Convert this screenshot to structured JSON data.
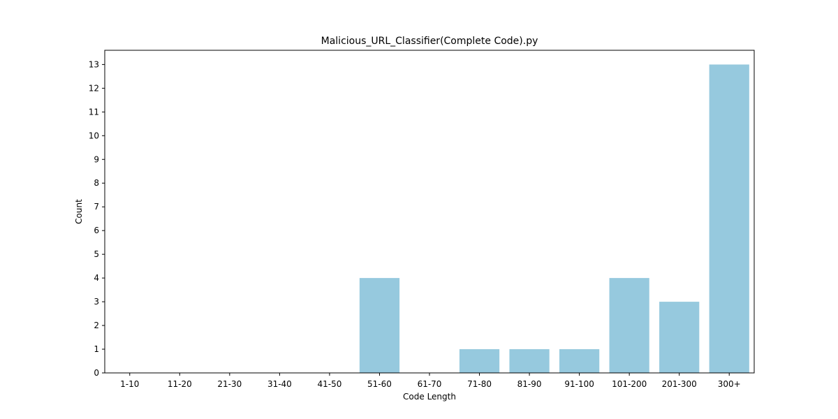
{
  "chart_data": {
    "type": "bar",
    "title": "Malicious_URL_Classifier(Complete Code).py",
    "xlabel": "Code Length",
    "ylabel": "Count",
    "categories": [
      "1-10",
      "11-20",
      "21-30",
      "31-40",
      "41-50",
      "51-60",
      "61-70",
      "71-80",
      "81-90",
      "91-100",
      "101-200",
      "201-300",
      "300+"
    ],
    "values": [
      0,
      0,
      0,
      0,
      0,
      4,
      0,
      1,
      1,
      1,
      4,
      3,
      13
    ],
    "ylim": [
      0,
      13.6
    ],
    "yticks": [
      0,
      1,
      2,
      3,
      4,
      5,
      6,
      7,
      8,
      9,
      10,
      11,
      12,
      13
    ],
    "bar_color": "#96c9de",
    "grid": false,
    "legend": "none"
  }
}
